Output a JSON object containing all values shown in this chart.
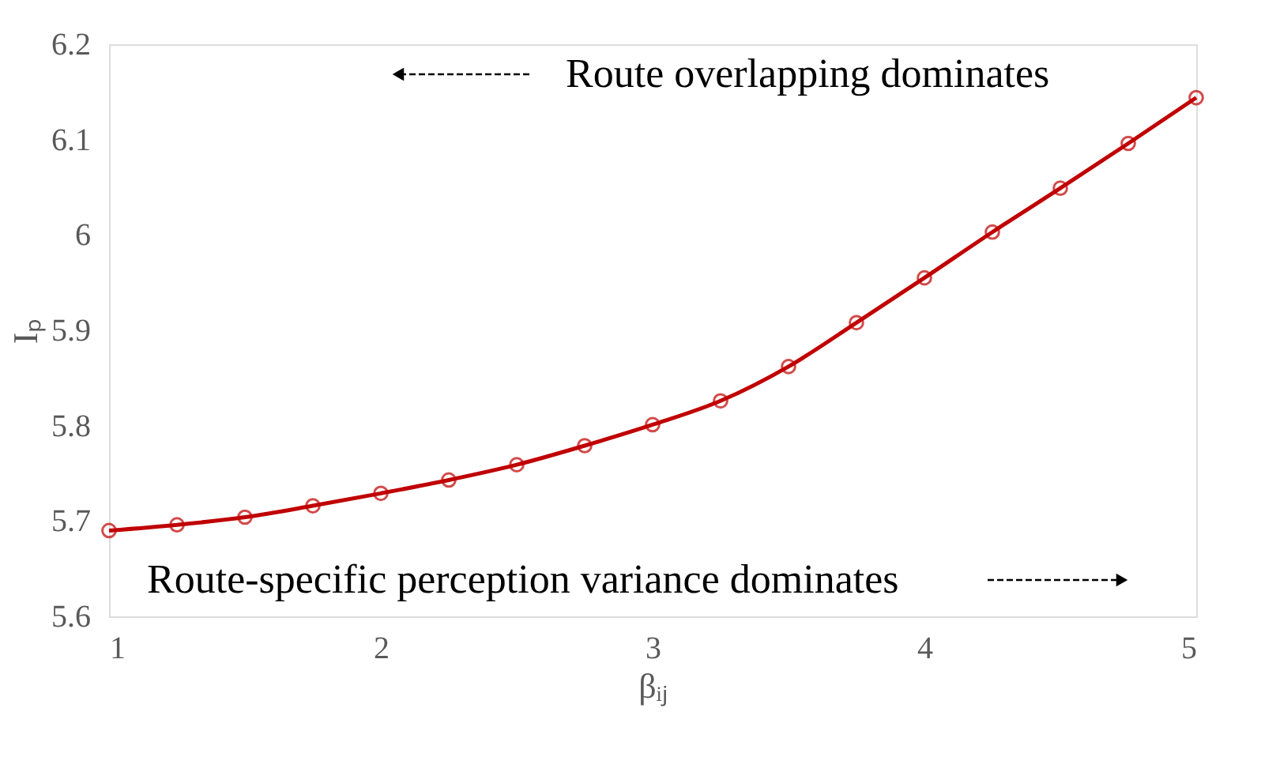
{
  "chart_data": {
    "type": "line",
    "xlabel": "βᵢⱼ",
    "ylabel": "Iₚ",
    "x": [
      1,
      1.25,
      1.5,
      1.75,
      2,
      2.25,
      2.5,
      2.75,
      3,
      3.25,
      3.5,
      3.75,
      4,
      4.25,
      4.5,
      4.75,
      5
    ],
    "series": [
      {
        "color": "#c00000",
        "values": [
          5.69,
          5.696,
          5.704,
          5.716,
          5.729,
          5.743,
          5.759,
          5.779,
          5.801,
          5.826,
          5.862,
          5.908,
          5.955,
          6.003,
          6.049,
          6.096,
          6.144
        ]
      }
    ],
    "xlim": [
      1,
      5
    ],
    "xticks": [
      1,
      2,
      3,
      4,
      5
    ],
    "ylim": [
      5.6,
      6.2
    ],
    "yticks": [
      5.6,
      5.7,
      5.8,
      5.9,
      6,
      6.1,
      6.2
    ],
    "grid": false,
    "marker": "circle",
    "line_style": "solid",
    "annotations": [
      "Route overlapping dominates",
      "Route-specific perception variance dominates"
    ]
  }
}
